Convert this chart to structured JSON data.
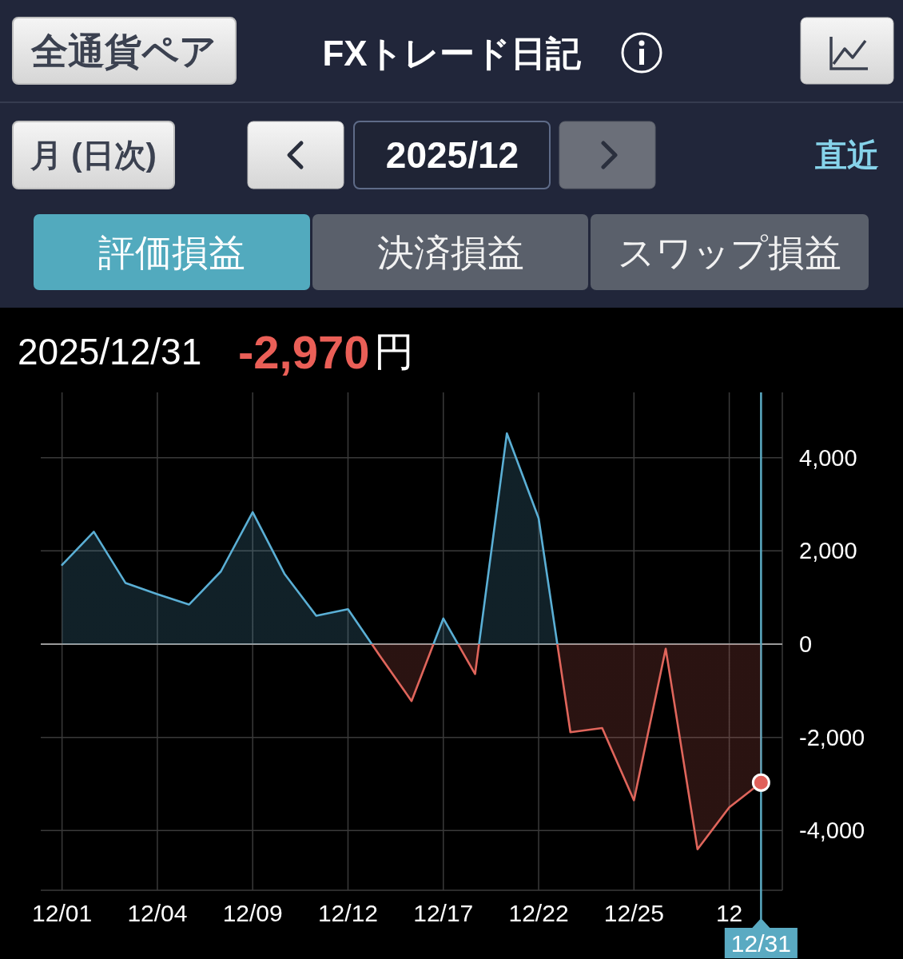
{
  "chart_data": {
    "type": "area",
    "title": "FXトレード日記",
    "annotations": [
      "全通貨ペア",
      "月 (日次)",
      "2025/12",
      "直近",
      "評価損益",
      "決済損益",
      "スワップ損益",
      "2025/12/31",
      "-2,970円"
    ],
    "categories": [
      "12/01",
      null,
      null,
      "12/04",
      null,
      null,
      "12/09",
      null,
      null,
      "12/12",
      null,
      null,
      "12/17",
      null,
      null,
      "12/22",
      null,
      null,
      "12/25",
      null,
      null,
      "12",
      "12/31"
    ],
    "series": [
      {
        "values": [
          1700,
          2410,
          1310,
          1070,
          850,
          1560,
          2830,
          1510,
          610,
          750,
          -250,
          -1220,
          550,
          -640,
          4520,
          2700,
          -1890,
          -1800,
          -3350,
          -100,
          -4400,
          -3500,
          -2970
        ],
        "colors": [
          "#5aafd5",
          "#5aafd5",
          "#5aafd5",
          "#5aafd5",
          "#5aafd5",
          "#5aafd5",
          "#5aafd5",
          "#5aafd5",
          "#5aafd5",
          "#5aafd5",
          "#e0655b",
          "#e0655b",
          "#5aafd5",
          "#e0655b",
          "#5aafd5",
          "#5aafd5",
          "#e0655b",
          "#e0655b",
          "#e0655b",
          "#e0655b",
          "#e0655b",
          "#e0655b",
          "#e0655b"
        ]
      },
      {
        "type": "scatter",
        "x": [
          "12/31"
        ],
        "values": [
          -2970
        ],
        "color": "#e0605a"
      }
    ],
    "ylim": [
      -5280,
      5400
    ],
    "yticks": [
      {
        "value": 4000,
        "label": "4,000"
      },
      {
        "value": 2000,
        "label": "2,000"
      },
      0,
      {
        "value": -2000,
        "label": "-2,000"
      },
      {
        "value": -4000,
        "label": "-4,000"
      }
    ],
    "grid": true,
    "ref_lines": [
      {
        "axis": "y",
        "value": 0,
        "color": "#9a9a9a"
      },
      {
        "axis": "x",
        "value": "12/31",
        "color": "#5aaac2"
      }
    ]
  }
}
